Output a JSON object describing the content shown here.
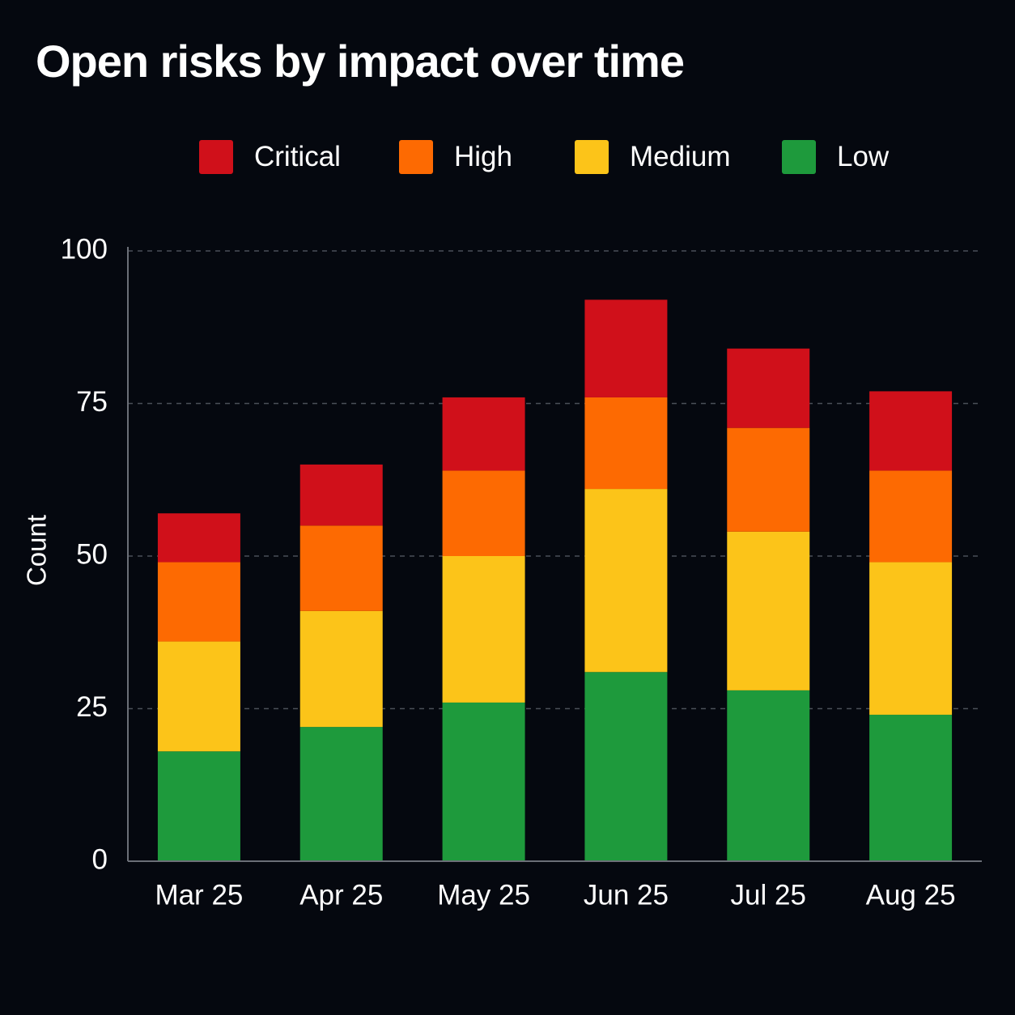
{
  "chart_data": {
    "type": "bar",
    "stacked": true,
    "title": "Open risks by impact over time",
    "xlabel": "",
    "ylabel": "Count",
    "ylim": [
      0,
      100
    ],
    "yticks": [
      0,
      25,
      50,
      75,
      100
    ],
    "grid": true,
    "legend_position": "top",
    "categories": [
      "Mar 25",
      "Apr 25",
      "May 25",
      "Jun 25",
      "Jul 25",
      "Aug 25"
    ],
    "series": [
      {
        "name": "Low",
        "color": "#1e9a3c",
        "values": [
          18,
          22,
          26,
          31,
          28,
          24
        ]
      },
      {
        "name": "Medium",
        "color": "#fcc419",
        "values": [
          18,
          19,
          24,
          30,
          26,
          25
        ]
      },
      {
        "name": "High",
        "color": "#fd6a02",
        "values": [
          13,
          14,
          14,
          15,
          17,
          15
        ]
      },
      {
        "name": "Critical",
        "color": "#d0101a",
        "values": [
          8,
          10,
          12,
          16,
          13,
          13
        ]
      }
    ],
    "legend_order": [
      "Critical",
      "High",
      "Medium",
      "Low"
    ]
  }
}
